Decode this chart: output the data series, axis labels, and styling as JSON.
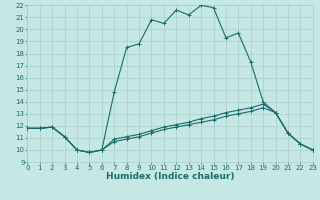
{
  "xlabel": "Humidex (Indice chaleur)",
  "background_color": "#c5e8e5",
  "grid_color": "#a8ceca",
  "line_color": "#1a6b6b",
  "xmin": 0,
  "xmax": 23,
  "ymin": 9,
  "ymax": 22,
  "curve1_x": [
    0,
    1,
    2,
    3,
    4,
    5,
    6,
    7,
    8,
    9,
    10,
    11,
    12,
    13,
    14,
    15,
    16,
    17,
    18,
    19,
    20,
    21,
    22,
    23
  ],
  "curve1_y": [
    11.8,
    11.8,
    11.9,
    11.1,
    10.0,
    9.8,
    10.0,
    14.8,
    18.5,
    18.8,
    20.8,
    20.5,
    21.6,
    21.2,
    22.0,
    21.8,
    19.3,
    19.7,
    17.3,
    14.0,
    13.1,
    11.4,
    10.5,
    10.0
  ],
  "curve2_x": [
    0,
    1,
    2,
    3,
    4,
    5,
    6,
    7,
    8,
    9,
    10,
    11,
    12,
    13,
    14,
    15,
    16,
    17,
    18,
    19,
    20,
    21,
    22,
    23
  ],
  "curve2_y": [
    11.8,
    11.8,
    11.9,
    11.1,
    10.0,
    9.8,
    10.0,
    10.9,
    11.1,
    11.3,
    11.6,
    11.9,
    12.1,
    12.3,
    12.6,
    12.8,
    13.1,
    13.3,
    13.5,
    13.8,
    13.1,
    11.4,
    10.5,
    10.0
  ],
  "curve3_x": [
    0,
    1,
    2,
    3,
    4,
    5,
    6,
    7,
    8,
    9,
    10,
    11,
    12,
    13,
    14,
    15,
    16,
    17,
    18,
    19,
    20,
    21,
    22,
    23
  ],
  "curve3_y": [
    11.8,
    11.8,
    11.9,
    11.1,
    10.0,
    9.8,
    10.0,
    10.7,
    10.9,
    11.1,
    11.4,
    11.7,
    11.9,
    12.1,
    12.3,
    12.5,
    12.8,
    13.0,
    13.2,
    13.5,
    13.1,
    11.4,
    10.5,
    10.0
  ],
  "yticks": [
    9,
    10,
    11,
    12,
    13,
    14,
    15,
    16,
    17,
    18,
    19,
    20,
    21,
    22
  ],
  "xticks": [
    0,
    1,
    2,
    3,
    4,
    5,
    6,
    7,
    8,
    9,
    10,
    11,
    12,
    13,
    14,
    15,
    16,
    17,
    18,
    19,
    20,
    21,
    22,
    23
  ],
  "label_fontsize": 6.5,
  "tick_fontsize": 5.0
}
